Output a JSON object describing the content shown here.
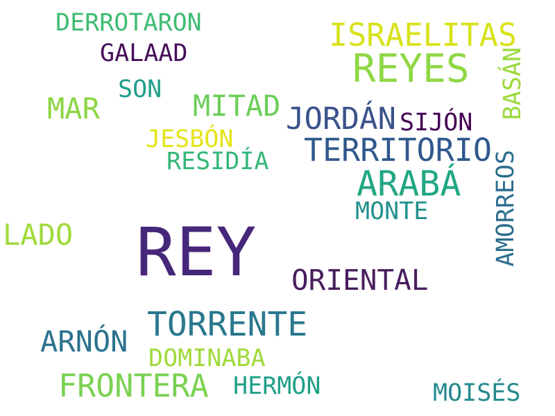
{
  "words": [
    {
      "text": "REY",
      "color": "#46277a"
    },
    {
      "text": "REYES",
      "color": "#8fd744"
    },
    {
      "text": "TORRENTE",
      "color": "#2a788e"
    },
    {
      "text": "ARABÁ",
      "color": "#22a784"
    },
    {
      "text": "ISRAELITAS",
      "color": "#d8e219"
    },
    {
      "text": "TERRITORIO",
      "color": "#31588d"
    },
    {
      "text": "FRONTERA",
      "color": "#7ad151"
    },
    {
      "text": "JORDÁN",
      "color": "#3b528b"
    },
    {
      "text": "ORIENTAL",
      "color": "#481e5d"
    },
    {
      "text": "MITAD",
      "color": "#6cce59"
    },
    {
      "text": "LADO",
      "color": "#9fda3a"
    },
    {
      "text": "ARNÓN",
      "color": "#2c728e"
    },
    {
      "text": "MAR",
      "color": "#8dd544"
    },
    {
      "text": "DERROTARON",
      "color": "#3fbc73"
    },
    {
      "text": "AMORREOS",
      "color": "#2c6e8e"
    },
    {
      "text": "MONTE",
      "color": "#21918c"
    },
    {
      "text": "GALAAD",
      "color": "#450f5a"
    },
    {
      "text": "SIJÓN",
      "color": "#440154"
    },
    {
      "text": "JESBÓN",
      "color": "#e4e419"
    },
    {
      "text": "RESIDÍA",
      "color": "#35b779"
    },
    {
      "text": "DOMINABA",
      "color": "#a0da39"
    },
    {
      "text": "HERMÓN",
      "color": "#1fa088"
    },
    {
      "text": "MOISÉS",
      "color": "#238a8d"
    },
    {
      "text": "SON",
      "color": "#1f9e89"
    },
    {
      "text": "BASÁN",
      "color": "#9bd93c"
    }
  ]
}
